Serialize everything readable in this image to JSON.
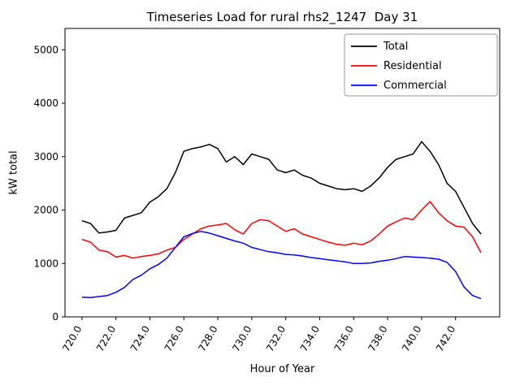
{
  "figure": {
    "title": "Timeseries Load for rural rhs2_1247  Day 31",
    "xlabel": "Hour of Year",
    "ylabel": "kW total"
  },
  "chart_data": {
    "type": "line",
    "title": "Timeseries Load for rural rhs2_1247  Day 31",
    "xlabel": "Hour of Year",
    "ylabel": "kW total",
    "xlim": [
      719.0,
      744.6
    ],
    "ylim": [
      0,
      5400
    ],
    "xticks": [
      "720.0",
      "722.0",
      "724.0",
      "726.0",
      "728.0",
      "730.0",
      "732.0",
      "734.0",
      "736.0",
      "738.0",
      "740.0",
      "742.0"
    ],
    "yticks": [
      0,
      1000,
      2000,
      3000,
      4000,
      5000
    ],
    "grid": false,
    "legend_position": "upper right",
    "x": [
      720.0,
      720.5,
      721.0,
      721.5,
      722.0,
      722.5,
      723.0,
      723.5,
      724.0,
      724.5,
      725.0,
      725.5,
      726.0,
      726.5,
      727.0,
      727.5,
      728.0,
      728.5,
      729.0,
      729.5,
      730.0,
      730.5,
      731.0,
      731.5,
      732.0,
      732.5,
      733.0,
      733.5,
      734.0,
      734.5,
      735.0,
      735.5,
      736.0,
      736.5,
      737.0,
      737.5,
      738.0,
      738.5,
      739.0,
      739.5,
      740.0,
      740.5,
      741.0,
      741.5,
      742.0,
      742.5,
      743.0,
      743.5
    ],
    "series": [
      {
        "name": "Total",
        "color": "#000000",
        "values": [
          1800,
          1750,
          1570,
          1590,
          1620,
          1850,
          1900,
          1950,
          2150,
          2250,
          2400,
          2700,
          3100,
          3150,
          3180,
          3230,
          3150,
          2900,
          3000,
          2850,
          3050,
          3000,
          2950,
          2750,
          2700,
          2750,
          2650,
          2600,
          2500,
          2450,
          2400,
          2380,
          2400,
          2350,
          2450,
          2600,
          2800,
          2950,
          3000,
          3050,
          3280,
          3100,
          2850,
          2500,
          2350,
          2050,
          1750,
          1550
        ]
      },
      {
        "name": "Residential",
        "color": "#ff0000",
        "values": [
          1450,
          1400,
          1250,
          1220,
          1120,
          1150,
          1100,
          1130,
          1150,
          1180,
          1250,
          1300,
          1450,
          1550,
          1650,
          1700,
          1720,
          1750,
          1630,
          1550,
          1750,
          1820,
          1800,
          1700,
          1600,
          1650,
          1550,
          1500,
          1450,
          1400,
          1360,
          1340,
          1380,
          1350,
          1420,
          1550,
          1700,
          1780,
          1850,
          1820,
          2000,
          2160,
          1950,
          1800,
          1700,
          1680,
          1500,
          1200
        ]
      },
      {
        "name": "Commercial",
        "color": "#0000ff",
        "values": [
          370,
          360,
          380,
          400,
          460,
          550,
          700,
          780,
          900,
          980,
          1100,
          1300,
          1500,
          1560,
          1600,
          1570,
          1520,
          1470,
          1420,
          1380,
          1300,
          1260,
          1220,
          1200,
          1170,
          1160,
          1140,
          1110,
          1090,
          1070,
          1050,
          1030,
          1000,
          1000,
          1010,
          1040,
          1060,
          1090,
          1130,
          1120,
          1110,
          1100,
          1080,
          1020,
          850,
          560,
          400,
          340
        ]
      }
    ]
  }
}
